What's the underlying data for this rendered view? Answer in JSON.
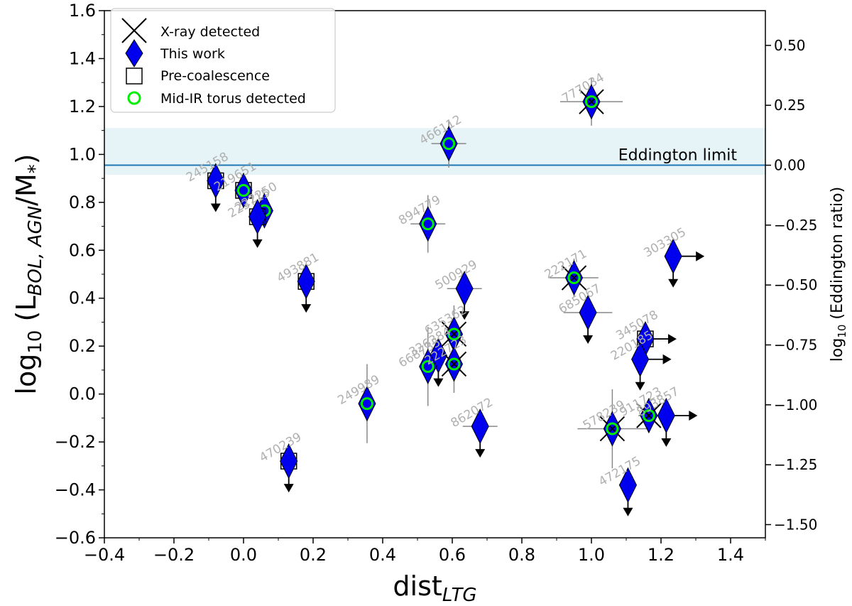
{
  "chart_data": {
    "type": "scatter",
    "title": "",
    "xlabel": "dist",
    "xlabel_sub": "LTG",
    "ylabel_main": "log",
    "ylabel_sub10": "10",
    "ylabel_paren_open": " (L",
    "ylabel_sub": "BOL, AGN",
    "ylabel_mid": "/M",
    "ylabel_star": "*",
    "ylabel_paren_close": ")",
    "y2label_main": "log",
    "y2label_sub": "10",
    "y2label_rest": " (Eddington ratio)",
    "xlim": [
      -0.4,
      1.5
    ],
    "ylim": [
      -0.6,
      1.6
    ],
    "x_ticks": [
      "−0.4",
      "−0.2",
      "0.0",
      "0.2",
      "0.4",
      "0.6",
      "0.8",
      "1.0",
      "1.2",
      "1.4"
    ],
    "x_tick_values": [
      -0.4,
      -0.2,
      0.0,
      0.2,
      0.4,
      0.6,
      0.8,
      1.0,
      1.2,
      1.4
    ],
    "y_ticks": [
      "−0.6",
      "−0.4",
      "−0.2",
      "0.0",
      "0.2",
      "0.4",
      "0.6",
      "0.8",
      "1.0",
      "1.2",
      "1.4",
      "1.6"
    ],
    "y_tick_values": [
      -0.6,
      -0.4,
      -0.2,
      0.0,
      0.2,
      0.4,
      0.6,
      0.8,
      1.0,
      1.2,
      1.4,
      1.6
    ],
    "y2_ticks": [
      "0.50",
      "0.25",
      "0.00",
      "−0.25",
      "−0.50",
      "−0.75",
      "−1.00",
      "−1.25",
      "−1.50"
    ],
    "y2_tick_values": [
      0.5,
      0.25,
      0.0,
      -0.25,
      -0.5,
      -0.75,
      -1.0,
      -1.25,
      -1.5
    ],
    "y2_offset": 0.955,
    "eddington_limit": {
      "value": 0.955,
      "band": [
        0.915,
        1.11
      ],
      "label": "Eddington limit"
    },
    "legend": {
      "position": "top-left",
      "entries": [
        {
          "marker": "x",
          "label": "X-ray detected"
        },
        {
          "marker": "diamond",
          "label": "This work"
        },
        {
          "marker": "square",
          "label": "Pre-coalescence"
        },
        {
          "marker": "circle",
          "label": "Mid-IR torus detected"
        }
      ]
    },
    "colors": {
      "diamond": "#0000ee",
      "torus": "#00ee00",
      "band": "#add8e6",
      "line": "#1f77b4",
      "errorbar": "#888888",
      "annotation": "#b0b0b0"
    },
    "points": [
      {
        "id": "245158",
        "x": -0.08,
        "y": 0.89,
        "square": true,
        "torus": false,
        "xray": false,
        "upper": true,
        "right": false,
        "yerr": 0.03,
        "xerr": 0
      },
      {
        "id": "219651",
        "x": 0.0,
        "y": 0.85,
        "square": true,
        "torus": true,
        "xray": false,
        "upper": false,
        "right": false,
        "yerr": 0.05,
        "xerr": 0
      },
      {
        "id": "222250",
        "x": 0.06,
        "y": 0.765,
        "square": false,
        "torus": true,
        "xray": false,
        "upper": false,
        "right": false,
        "yerr": 0.07,
        "xerr": 0
      },
      {
        "id": "223715",
        "x": 0.04,
        "y": 0.74,
        "square": true,
        "torus": false,
        "xray": false,
        "upper": true,
        "right": false,
        "yerr": 0.03,
        "xerr": 0
      },
      {
        "id": "493881",
        "x": 0.18,
        "y": 0.47,
        "square": true,
        "torus": false,
        "xray": false,
        "upper": true,
        "right": false,
        "yerr": 0.03,
        "xerr": 0
      },
      {
        "id": "470239",
        "x": 0.13,
        "y": -0.28,
        "square": true,
        "torus": false,
        "xray": false,
        "upper": true,
        "right": false,
        "yerr": 0.03,
        "xerr": 0
      },
      {
        "id": "249989",
        "x": 0.355,
        "y": -0.04,
        "square": false,
        "torus": true,
        "xray": false,
        "upper": false,
        "right": false,
        "yerr": 0.165,
        "xerr": 0
      },
      {
        "id": "466112",
        "x": 0.59,
        "y": 1.045,
        "square": false,
        "torus": true,
        "xray": false,
        "upper": false,
        "right": false,
        "yerr": 0.1,
        "xerr": 0.05
      },
      {
        "id": "894779",
        "x": 0.53,
        "y": 0.71,
        "square": false,
        "torus": true,
        "xray": false,
        "upper": false,
        "right": false,
        "yerr": 0.12,
        "xerr": 0.05
      },
      {
        "id": "500929",
        "x": 0.635,
        "y": 0.44,
        "square": false,
        "torus": false,
        "xray": false,
        "upper": true,
        "right": false,
        "yerr": 0.03,
        "xerr": 0.05
      },
      {
        "id": "635362",
        "x": 0.605,
        "y": 0.25,
        "square": false,
        "torus": true,
        "xray": true,
        "upper": false,
        "right": false,
        "yerr": 0.12,
        "xerr": 0
      },
      {
        "id": "326384",
        "x": 0.56,
        "y": 0.16,
        "square": false,
        "torus": false,
        "xray": false,
        "upper": true,
        "right": false,
        "yerr": 0.03,
        "xerr": 0
      },
      {
        "id": "668735",
        "x": 0.53,
        "y": 0.115,
        "square": false,
        "torus": true,
        "xray": false,
        "upper": false,
        "right": false,
        "yerr": 0.165,
        "xerr": 0
      },
      {
        "id": "222723",
        "x": 0.605,
        "y": 0.125,
        "square": false,
        "torus": true,
        "xray": true,
        "upper": false,
        "right": false,
        "yerr": 0.12,
        "xerr": 0
      },
      {
        "id": "862072",
        "x": 0.68,
        "y": -0.135,
        "square": false,
        "torus": false,
        "xray": false,
        "upper": true,
        "right": false,
        "yerr": 0.03,
        "xerr": 0.05
      },
      {
        "id": "777034",
        "x": 1.0,
        "y": 1.22,
        "square": false,
        "torus": true,
        "xray": true,
        "upper": false,
        "right": false,
        "yerr": 0.1,
        "xerr": 0.09
      },
      {
        "id": "222171",
        "x": 0.95,
        "y": 0.485,
        "square": false,
        "torus": true,
        "xray": true,
        "upper": false,
        "right": false,
        "yerr": 0.08,
        "xerr": 0.07
      },
      {
        "id": "685067",
        "x": 0.99,
        "y": 0.34,
        "square": false,
        "torus": false,
        "xray": false,
        "upper": true,
        "right": false,
        "yerr": 0.03,
        "xerr": 0.07
      },
      {
        "id": "303305",
        "x": 1.235,
        "y": 0.575,
        "square": false,
        "torus": false,
        "xray": false,
        "upper": true,
        "right": true,
        "yerr": 0.03,
        "xerr": 0
      },
      {
        "id": "345078",
        "x": 1.155,
        "y": 0.23,
        "square": true,
        "torus": false,
        "xray": false,
        "upper": false,
        "right": true,
        "yerr": 0.03,
        "xerr": 0
      },
      {
        "id": "220185",
        "x": 1.14,
        "y": 0.145,
        "square": false,
        "torus": false,
        "xray": false,
        "upper": true,
        "right": true,
        "yerr": 0.03,
        "xerr": 0
      },
      {
        "id": "578239",
        "x": 1.06,
        "y": -0.145,
        "square": false,
        "torus": true,
        "xray": true,
        "upper": false,
        "right": false,
        "yerr": 0.165,
        "xerr": 0.1
      },
      {
        "id": "911723",
        "x": 1.165,
        "y": -0.09,
        "square": false,
        "torus": true,
        "xray": true,
        "upper": false,
        "right": false,
        "yerr": 0.05,
        "xerr": 0.03
      },
      {
        "id": "893857",
        "x": 1.215,
        "y": -0.09,
        "square": false,
        "torus": false,
        "xray": false,
        "upper": true,
        "right": true,
        "yerr": 0.03,
        "xerr": 0
      },
      {
        "id": "472175",
        "x": 1.105,
        "y": -0.38,
        "square": false,
        "torus": false,
        "xray": false,
        "upper": true,
        "right": false,
        "yerr": 0.03,
        "xerr": 0
      }
    ]
  }
}
